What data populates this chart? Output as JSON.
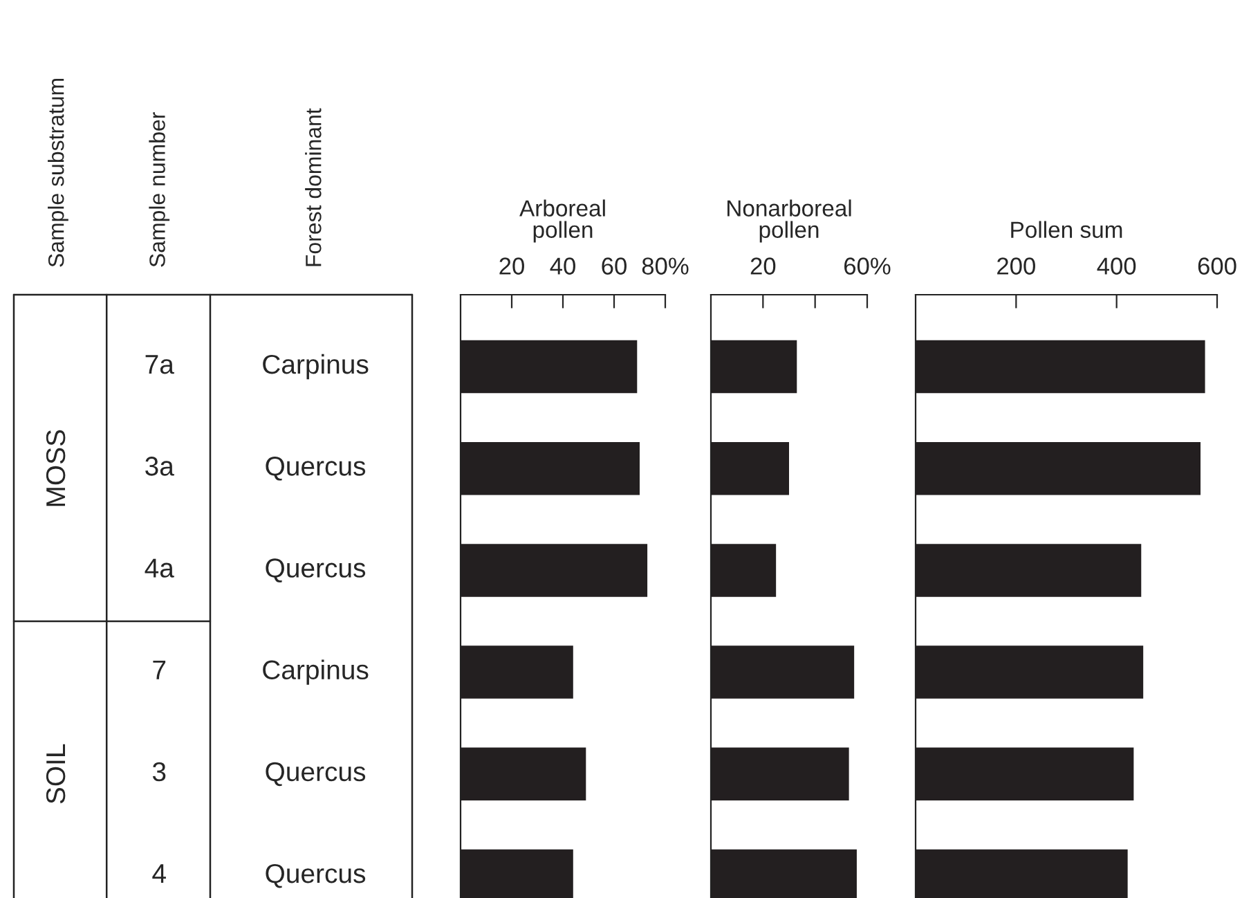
{
  "chart_data": [
    {
      "type": "other",
      "categories": [
        "Sample substratum",
        "Sample number",
        "Forest dominant"
      ],
      "annotations": [
        "MOSS",
        "SOIL",
        "7a",
        "3a",
        "4a",
        "7",
        "3",
        "4",
        "Carpinus",
        "Quercus",
        "Quercus",
        "Carpinus",
        "Quercus",
        "Quercus"
      ]
    },
    {
      "type": "bar",
      "orientation": "horizontal",
      "xlabel": "Arboreal\npollen",
      "categories": [
        null,
        null,
        null,
        null,
        null,
        null
      ],
      "values": [
        69,
        70,
        73,
        44,
        49,
        44
      ],
      "color": "#231f20",
      "xlim": [
        0,
        80
      ],
      "xticks": [
        20,
        40,
        60,
        {
          "value": 80,
          "label": "80%"
        }
      ],
      "tick_labels": "x"
    },
    {
      "type": "bar",
      "orientation": "horizontal",
      "xlabel": "Nonarboreal\npollen",
      "categories": [
        null,
        null,
        null,
        null,
        null,
        null
      ],
      "values": [
        33,
        30,
        25,
        55,
        53,
        56
      ],
      "color": "#231f20",
      "xlim": [
        0,
        60
      ],
      "xticks": [
        20,
        {
          "value": 40,
          "label": null
        },
        {
          "value": 60,
          "label": "60%"
        }
      ],
      "tick_labels": "x"
    },
    {
      "type": "bar",
      "orientation": "horizontal",
      "xlabel": "Pollen sum",
      "categories": [
        null,
        null,
        null,
        null,
        null,
        null
      ],
      "values": [
        576,
        567,
        449,
        453,
        434,
        422
      ],
      "color": "#231f20",
      "xlim": [
        0,
        600
      ],
      "xticks": [
        200,
        400,
        600
      ],
      "tick_labels": "x"
    }
  ]
}
